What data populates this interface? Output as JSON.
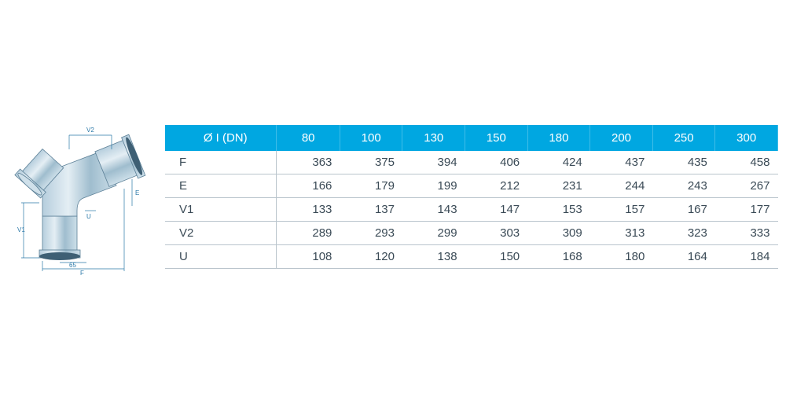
{
  "diagram": {
    "labels": {
      "F": "F",
      "E": "E",
      "V1": "V1",
      "V2": "V2",
      "U": "U",
      "const65": "65"
    },
    "line_color": "#2a78a8",
    "pipe_fill_light": "#d8e6ee",
    "pipe_fill_mid": "#a8c4d4",
    "pipe_fill_dark": "#7099b0"
  },
  "table": {
    "header_bg": "#00a7e1",
    "header_fg": "#ffffff",
    "border_color": "#b9c4cc",
    "cell_fg": "#3a4a56",
    "columns": [
      "Ø I (DN)",
      "80",
      "100",
      "130",
      "150",
      "180",
      "200",
      "250",
      "300"
    ],
    "rows": [
      {
        "label": "F",
        "values": [
          "363",
          "375",
          "394",
          "406",
          "424",
          "437",
          "435",
          "458"
        ]
      },
      {
        "label": "E",
        "values": [
          "166",
          "179",
          "199",
          "212",
          "231",
          "244",
          "243",
          "267"
        ]
      },
      {
        "label": "V1",
        "values": [
          "133",
          "137",
          "143",
          "147",
          "153",
          "157",
          "167",
          "177"
        ]
      },
      {
        "label": "V2",
        "values": [
          "289",
          "293",
          "299",
          "303",
          "309",
          "313",
          "323",
          "333"
        ]
      },
      {
        "label": "U",
        "values": [
          "108",
          "120",
          "138",
          "150",
          "168",
          "180",
          "164",
          "184"
        ]
      }
    ]
  }
}
